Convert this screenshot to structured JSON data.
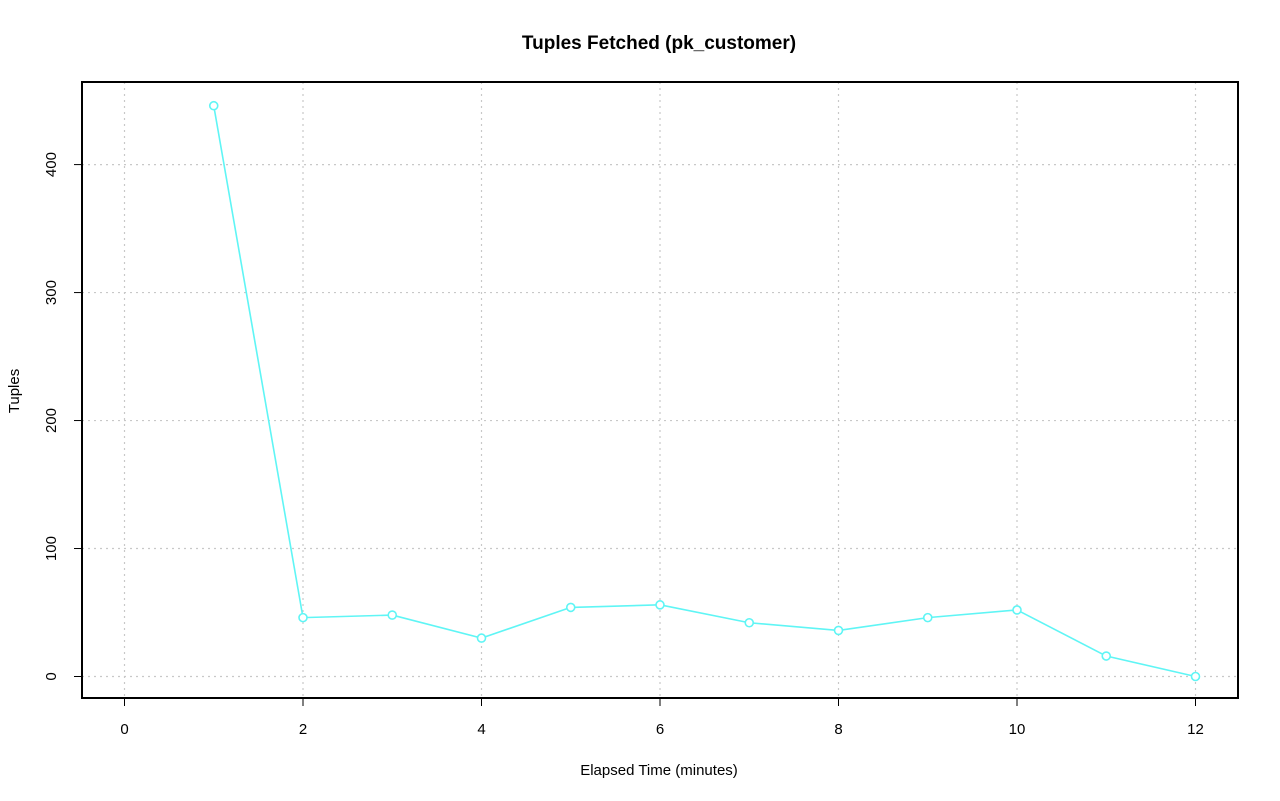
{
  "chart_data": {
    "type": "line",
    "title": "Tuples Fetched (pk_customer)",
    "xlabel": "Elapsed Time (minutes)",
    "ylabel": "Tuples",
    "xlim": [
      0,
      12
    ],
    "ylim": [
      0,
      440
    ],
    "x_ticks": [
      0,
      2,
      4,
      6,
      8,
      10,
      12
    ],
    "y_ticks": [
      0,
      100,
      200,
      300,
      400
    ],
    "grid": true,
    "legend": "none",
    "series": [
      {
        "color": "#5ff5f5",
        "marker": "open-circle",
        "x": [
          1,
          2,
          3,
          4,
          5,
          6,
          7,
          8,
          9,
          10,
          11,
          12
        ],
        "y": [
          446,
          46,
          48,
          30,
          54,
          56,
          42,
          36,
          46,
          52,
          16,
          0
        ]
      }
    ]
  }
}
